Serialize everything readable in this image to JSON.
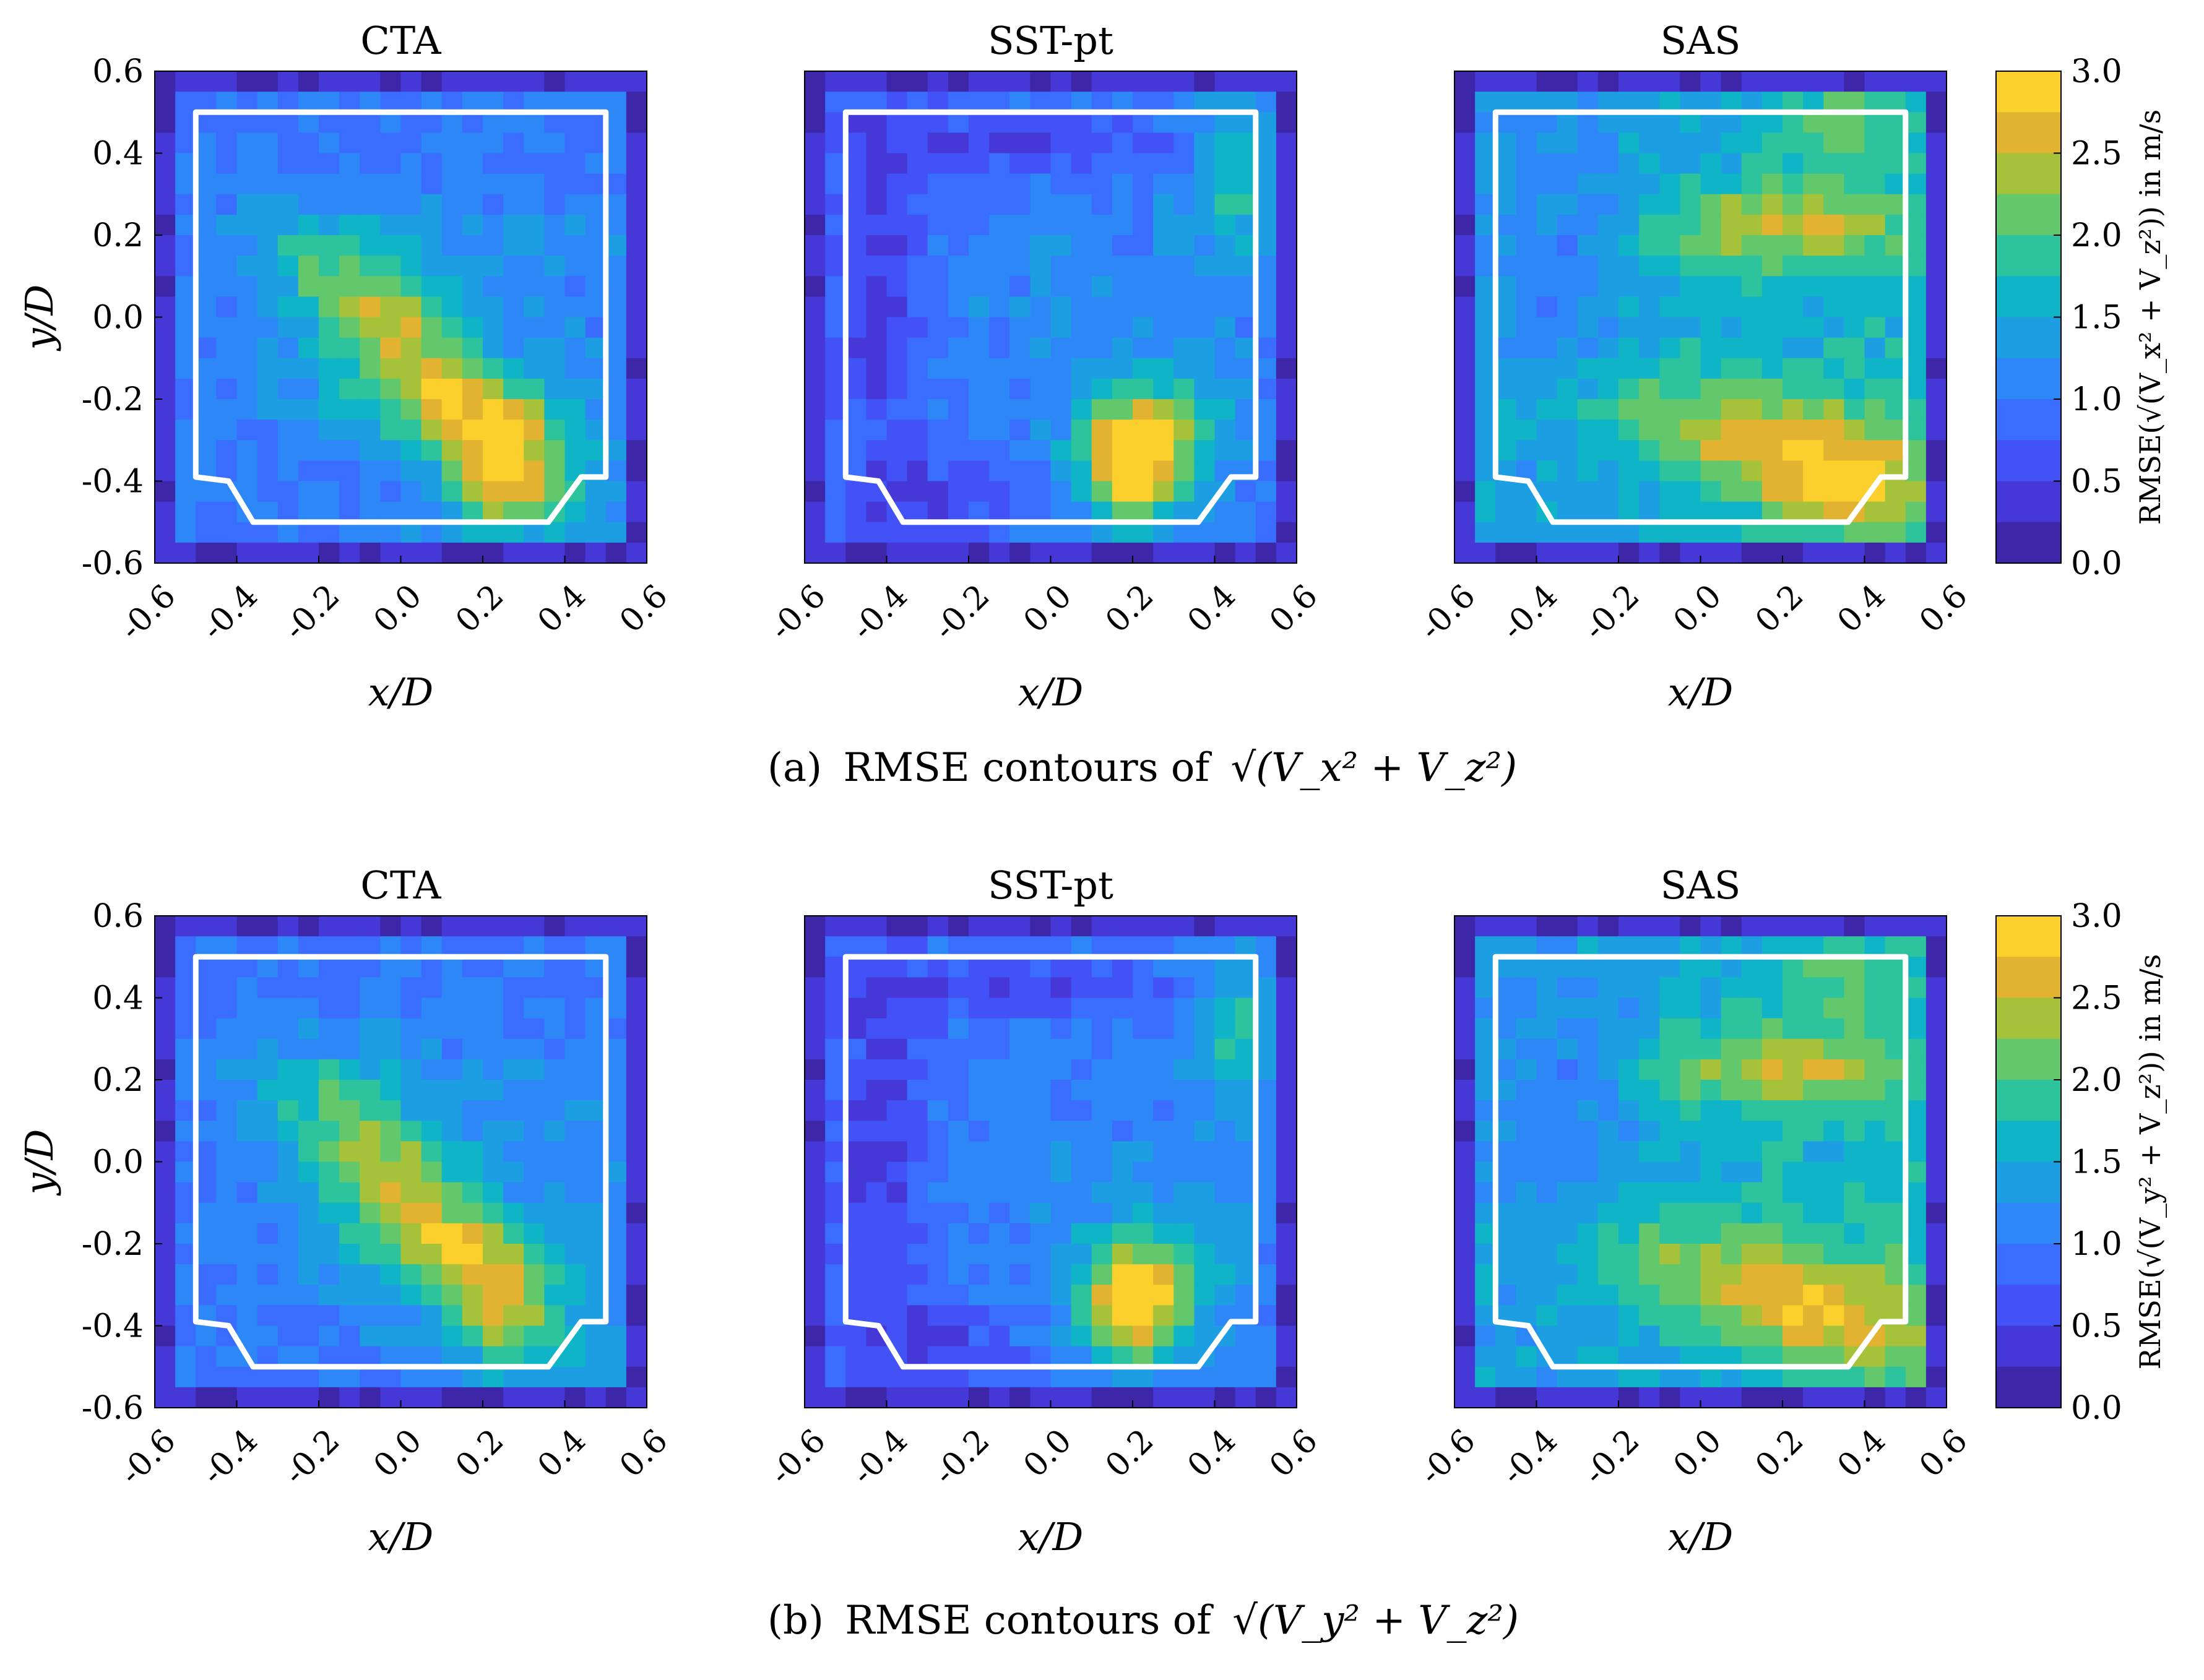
{
  "figure": {
    "captions": [
      {
        "label": "(a)",
        "text": "RMSE contours of",
        "expr": "√(V_x² + V_z²)"
      },
      {
        "label": "(b)",
        "text": "RMSE contours of",
        "expr": "√(V_y² + V_z²)"
      }
    ]
  },
  "chart_data": [
    {
      "type": "heatmap",
      "row": "a",
      "panels": [
        {
          "title": "CTA",
          "xlabel": "x/D",
          "ylabel": "y/D",
          "pattern": "cta"
        },
        {
          "title": "SST-pt",
          "xlabel": "x/D",
          "ylabel": "",
          "pattern": "sst"
        },
        {
          "title": "SAS",
          "xlabel": "x/D",
          "ylabel": "",
          "pattern": "sas"
        }
      ],
      "xlim": [
        -0.6,
        0.6
      ],
      "ylim": [
        -0.6,
        0.6
      ],
      "xticks": [
        "-0.6",
        "-0.4",
        "-0.2",
        "0.0",
        "0.2",
        "0.4",
        "0.6"
      ],
      "yticks": [
        "0.6",
        "0.4",
        "0.2",
        "0.0",
        "-0.2",
        "-0.4",
        "-0.6"
      ],
      "colorbar": {
        "label": "RMSE(√(V_x² + V_z²)) in m/s",
        "range": [
          0.0,
          3.0
        ],
        "ticks": [
          "3.0",
          "2.5",
          "2.0",
          "1.5",
          "1.0",
          "0.5",
          "0.0"
        ],
        "levels": 12
      },
      "outline": "white chamfered square, x from -0.5 to 0.5, y from -0.5 to 0.5"
    },
    {
      "type": "heatmap",
      "row": "b",
      "panels": [
        {
          "title": "CTA",
          "xlabel": "x/D",
          "ylabel": "y/D",
          "pattern": "cta"
        },
        {
          "title": "SST-pt",
          "xlabel": "x/D",
          "ylabel": "",
          "pattern": "sst"
        },
        {
          "title": "SAS",
          "xlabel": "x/D",
          "ylabel": "",
          "pattern": "sas"
        }
      ],
      "xlim": [
        -0.6,
        0.6
      ],
      "ylim": [
        -0.6,
        0.6
      ],
      "xticks": [
        "-0.6",
        "-0.4",
        "-0.2",
        "0.0",
        "0.2",
        "0.4",
        "0.6"
      ],
      "yticks": [
        "0.6",
        "0.4",
        "0.2",
        "0.0",
        "-0.2",
        "-0.4",
        "-0.6"
      ],
      "colorbar": {
        "label": "RMSE(√(V_y² + V_z²)) in m/s",
        "range": [
          0.0,
          3.0
        ],
        "ticks": [
          "3.0",
          "2.5",
          "2.0",
          "1.5",
          "1.0",
          "0.5",
          "0.0"
        ],
        "levels": 12
      },
      "outline": "white chamfered square, x from -0.5 to 0.5, y from -0.5 to 0.5"
    }
  ],
  "colormap": [
    "#3e26a8",
    "#4538d6",
    "#4352f6",
    "#3a6cfe",
    "#2e87f6",
    "#1e9ee2",
    "#0fb4c7",
    "#2dc39c",
    "#63c76c",
    "#a6c13a",
    "#e2b331",
    "#fbcf2c",
    "#f9fb15"
  ]
}
